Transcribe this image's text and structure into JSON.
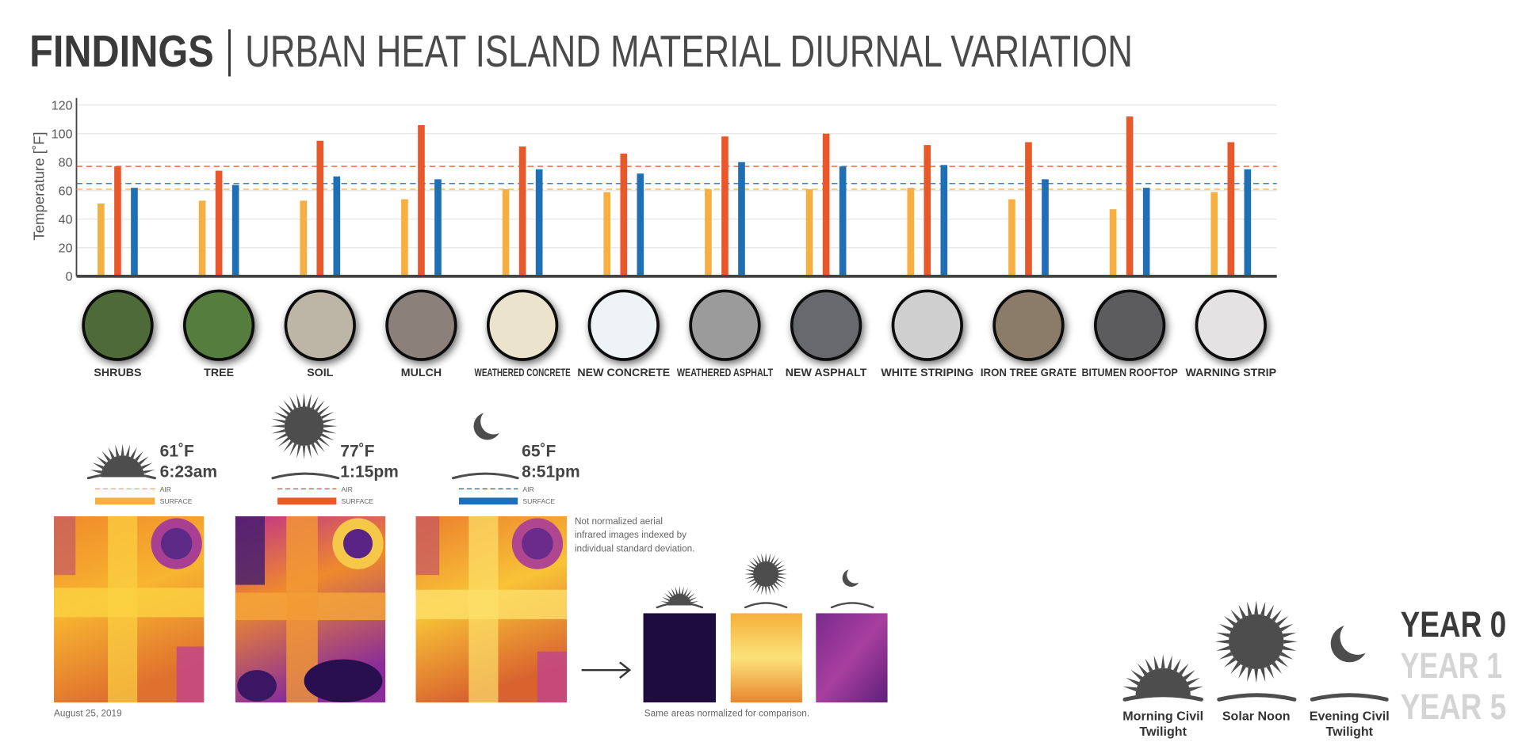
{
  "header": {
    "title": "FINDINGS",
    "subtitle": "URBAN HEAT ISLAND MATERIAL DIURNAL VARIATION"
  },
  "chart_data": {
    "type": "bar",
    "ylabel": "Temperature [˚F]",
    "categories": [
      "SHRUBS",
      "TREE",
      "SOIL",
      "MULCH",
      "WEATHERED CONCRETE",
      "NEW CONCRETE",
      "WEATHERED ASPHALT",
      "NEW ASPHALT",
      "WHITE STRIPING",
      "IRON TREE GRATE",
      "BITUMEN ROOFTOP",
      "WARNING STRIP"
    ],
    "material_colors": [
      "#4d6a38",
      "#557d3e",
      "#bdb5a6",
      "#8c817a",
      "#ebe3cc",
      "#eef3f6",
      "#9b9b9b",
      "#68696c",
      "#cfcfcf",
      "#8b7c6a",
      "#5b5b5e",
      "#e4e2e2"
    ],
    "series": [
      {
        "name": "6:23am",
        "color": "#f6b042",
        "values": [
          51,
          53,
          53,
          54,
          61,
          59,
          61,
          61,
          62,
          54,
          47,
          59
        ]
      },
      {
        "name": "1:15pm",
        "color": "#e9582b",
        "values": [
          77,
          74,
          95,
          106,
          91,
          86,
          98,
          100,
          92,
          94,
          112,
          94
        ]
      },
      {
        "name": "8:51pm",
        "color": "#1f6fb4",
        "values": [
          62,
          64,
          70,
          68,
          75,
          72,
          80,
          77,
          78,
          68,
          62,
          75
        ]
      }
    ],
    "air_temps": {
      "values": [
        61,
        77,
        65
      ],
      "value_labels": [
        "61˚F",
        "77˚F",
        "65˚F"
      ]
    },
    "ylim": [
      0,
      125
    ],
    "yticks": [
      0,
      20,
      40,
      60,
      80,
      100,
      120
    ],
    "grid": true
  },
  "legend": {
    "air": "AIR",
    "surface": "SURFACE"
  },
  "notes": {
    "aerial": [
      "Not normalized aerial",
      "infrared images indexed by",
      "individual standard deviation."
    ],
    "date": "August 25, 2019",
    "normalized": "Same areas normalized for comparison."
  },
  "phases": [
    [
      "Morning Civil",
      "Twilight"
    ],
    [
      "Solar Noon"
    ],
    [
      "Evening Civil",
      "Twilight"
    ]
  ],
  "years": [
    "YEAR 0",
    "YEAR 1",
    "YEAR 5"
  ]
}
